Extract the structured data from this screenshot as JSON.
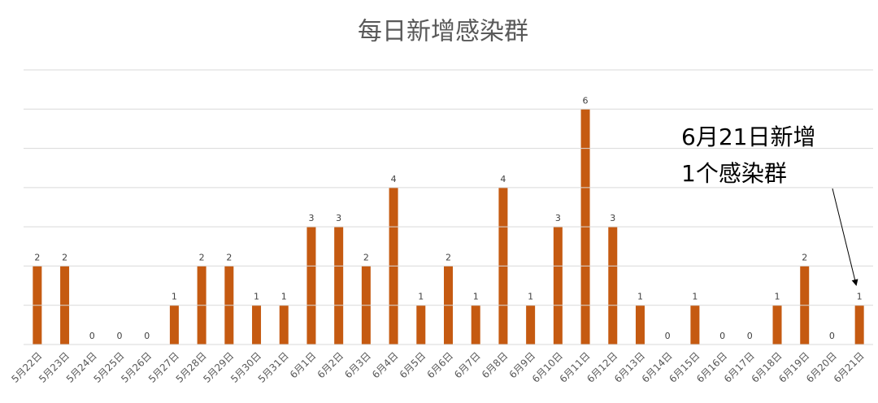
{
  "chart_data": {
    "type": "bar",
    "title": "每日新增感染群",
    "categories": [
      "5月22日",
      "5月23日",
      "5月24日",
      "5月25日",
      "5月26日",
      "5月27日",
      "5月28日",
      "5月29日",
      "5月30日",
      "5月31日",
      "6月1日",
      "6月2日",
      "6月3日",
      "6月4日",
      "6月5日",
      "6月6日",
      "6月7日",
      "6月8日",
      "6月9日",
      "6月10日",
      "6月11日",
      "6月12日",
      "6月13日",
      "6月14日",
      "6月15日",
      "6月16日",
      "6月17日",
      "6月18日",
      "6月19日",
      "6月20日",
      "6月21日"
    ],
    "values": [
      2,
      2,
      0,
      0,
      0,
      1,
      2,
      2,
      1,
      1,
      3,
      3,
      2,
      4,
      1,
      2,
      1,
      4,
      1,
      3,
      6,
      3,
      1,
      0,
      1,
      0,
      0,
      1,
      2,
      0,
      1
    ],
    "color": "#c55a11",
    "ylim": [
      0,
      7
    ],
    "yticks": [
      0,
      1,
      2,
      3,
      4,
      5,
      6,
      7
    ],
    "grid": true,
    "annotation": [
      "6月21日新增",
      "1个感染群"
    ]
  }
}
